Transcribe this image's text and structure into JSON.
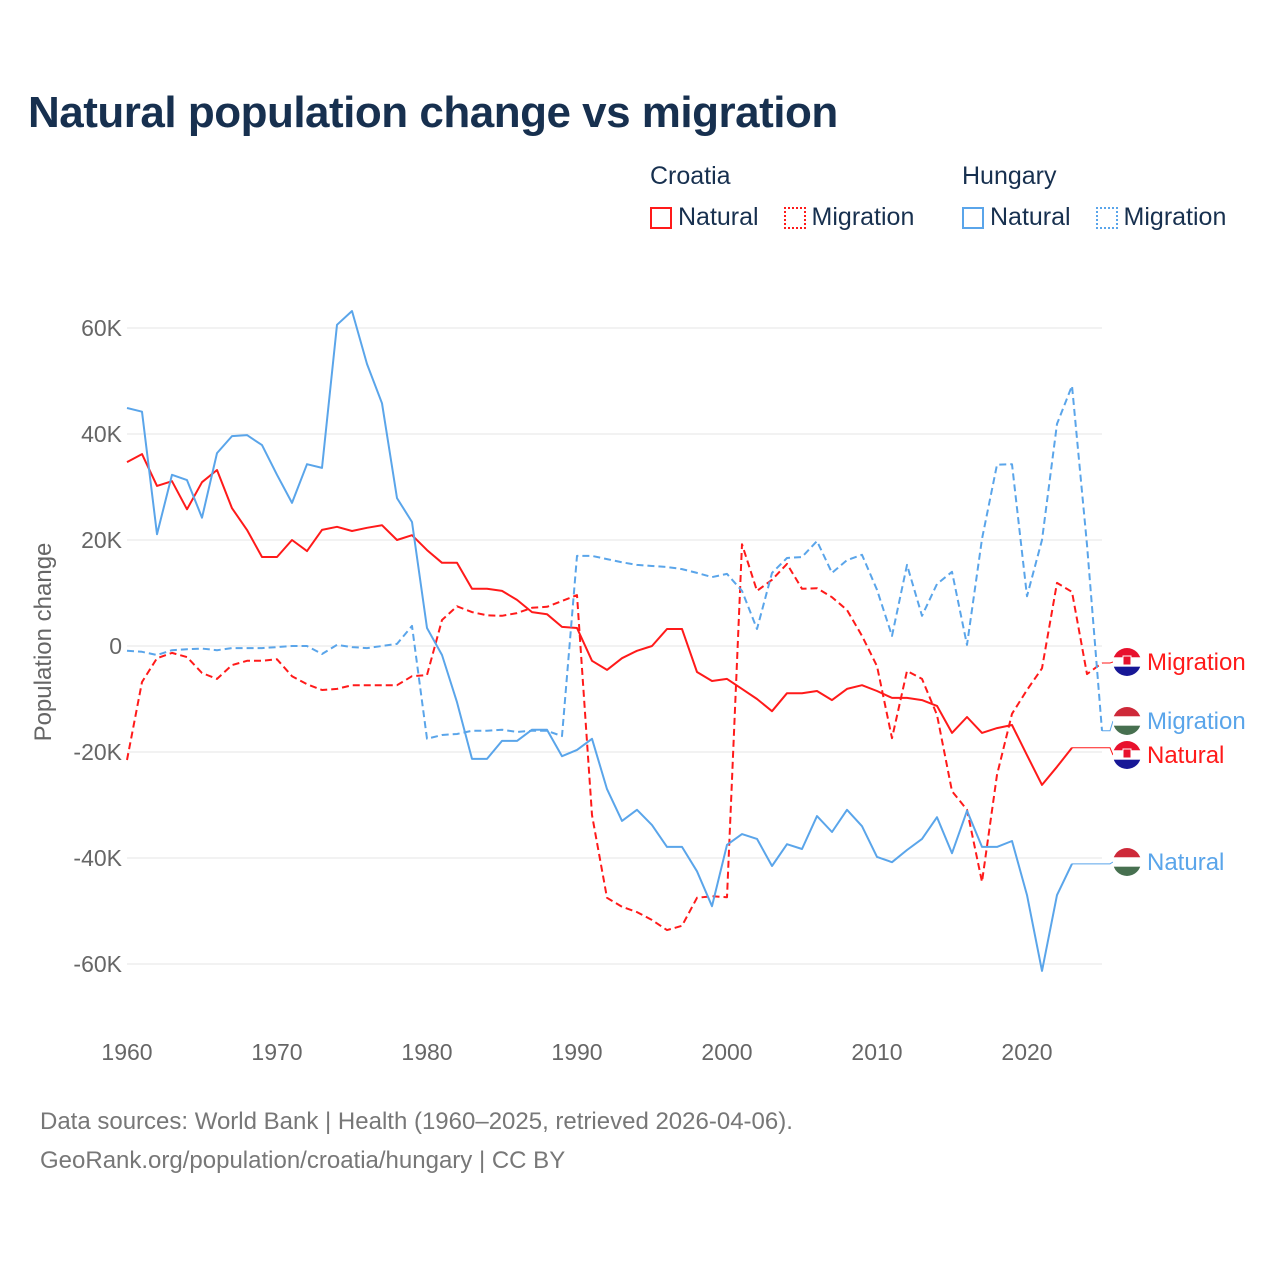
{
  "chart_data": {
    "type": "line",
    "title": "Natural population change vs migration",
    "xlabel": "",
    "ylabel": "Population change",
    "xlim": [
      1960,
      2025
    ],
    "ylim": [
      -70000,
      65000
    ],
    "x_ticks": [
      1960,
      1970,
      1980,
      1990,
      2000,
      2010,
      2020
    ],
    "x_tick_labels": [
      "1960",
      "1970",
      "1980",
      "1990",
      "2000",
      "2010",
      "2020"
    ],
    "y_ticks": [
      60000,
      40000,
      20000,
      0,
      -20000,
      -40000,
      -60000
    ],
    "y_tick_labels": [
      "60K",
      "40K",
      "20K",
      "0",
      "-20K",
      "-40K",
      "-60K"
    ],
    "grid": true,
    "legend_placement": "top-right",
    "legend_groups": [
      {
        "name": "Croatia",
        "items": [
          {
            "label": "Natural",
            "style": "solid",
            "color": "#ff1a1a"
          },
          {
            "label": "Migration",
            "style": "dotted",
            "color": "#ff1a1a"
          }
        ]
      },
      {
        "name": "Hungary",
        "items": [
          {
            "label": "Natural",
            "style": "solid",
            "color": "#5aa5ea"
          },
          {
            "label": "Migration",
            "style": "dotted",
            "color": "#5aa5ea"
          }
        ]
      }
    ],
    "series": [
      {
        "name": "Croatia Natural",
        "end_label": "Natural",
        "country": "croatia",
        "dashed": false,
        "color": "#ff1a1a",
        "start": 1960,
        "values": [
          34700,
          36200,
          30200,
          31100,
          25800,
          30900,
          33200,
          26000,
          21900,
          16800,
          16800,
          20000,
          17900,
          21900,
          22500,
          21700,
          22300,
          22800,
          20000,
          20900,
          18100,
          15700,
          15700,
          10800,
          10800,
          10400,
          8700,
          6400,
          6000,
          3600,
          3400,
          -2800,
          -4500,
          -2300,
          -900,
          0,
          3200,
          3200,
          -4900,
          -6600,
          -6200,
          -8100,
          -10000,
          -12300,
          -8900,
          -8900,
          -8500,
          -10200,
          -8100,
          -7400,
          -8500,
          -9800,
          -9800,
          -10200,
          -11300,
          -16400,
          -13400,
          -16400,
          -15500,
          -14900,
          -20600,
          -26200,
          -22800,
          -19200
        ]
      },
      {
        "name": "Croatia Migration",
        "end_label": "Migration",
        "country": "croatia",
        "dashed": true,
        "color": "#ff1a1a",
        "start": 1960,
        "values": [
          -21500,
          -6800,
          -2300,
          -1300,
          -2100,
          -5100,
          -6200,
          -3600,
          -2800,
          -2800,
          -2500,
          -5700,
          -7200,
          -8300,
          -8100,
          -7400,
          -7400,
          -7400,
          -7400,
          -5700,
          -5500,
          4900,
          7500,
          6400,
          5800,
          5700,
          6200,
          7200,
          7400,
          8500,
          9600,
          -31900,
          -47500,
          -49200,
          -50200,
          -51700,
          -53600,
          -52800,
          -47500,
          -47200,
          -47400,
          19200,
          10400,
          12500,
          15500,
          10800,
          10900,
          9200,
          6800,
          1900,
          -3800,
          -17400,
          -4700,
          -6200,
          -13000,
          -27400,
          -30900,
          -44500,
          -24300,
          -12800,
          -8300,
          -4200,
          11900,
          10200,
          -5300,
          -3200
        ]
      },
      {
        "name": "Hungary Natural",
        "end_label": "Natural",
        "country": "hungary",
        "dashed": false,
        "color": "#5aa5ea",
        "start": 1960,
        "values": [
          44900,
          44200,
          21100,
          32300,
          31300,
          24200,
          36400,
          39600,
          39800,
          37900,
          32300,
          27000,
          34300,
          33600,
          60600,
          63200,
          53200,
          45800,
          27900,
          23400,
          3400,
          -1700,
          -10600,
          -21300,
          -21300,
          -17900,
          -17900,
          -15800,
          -15800,
          -20800,
          -19600,
          -17500,
          -27000,
          -33000,
          -30900,
          -33800,
          -37900,
          -37900,
          -42500,
          -49100,
          -37500,
          -35500,
          -36400,
          -41500,
          -37400,
          -38300,
          -32100,
          -35100,
          -30900,
          -34000,
          -39800,
          -40800,
          -38500,
          -36400,
          -32300,
          -39100,
          -31100,
          -37900,
          -37900,
          -36800,
          -47000,
          -61300,
          -47000,
          -41100
        ]
      },
      {
        "name": "Hungary Migration",
        "end_label": "Migration",
        "country": "hungary",
        "dashed": true,
        "color": "#5aa5ea",
        "start": 1960,
        "values": [
          -900,
          -1100,
          -1700,
          -800,
          -600,
          -500,
          -800,
          -400,
          -400,
          -400,
          -200,
          0,
          0,
          -1500,
          200,
          -200,
          -400,
          0,
          400,
          3800,
          -17500,
          -16800,
          -16600,
          -16000,
          -16000,
          -15800,
          -16200,
          -16000,
          -16000,
          -17000,
          17000,
          17000,
          16400,
          15800,
          15300,
          15100,
          14900,
          14500,
          13800,
          13000,
          13600,
          10400,
          3200,
          13800,
          16600,
          16800,
          19800,
          13800,
          16200,
          17200,
          10600,
          1900,
          15300,
          5700,
          11700,
          14000,
          200,
          20200,
          34200,
          34300,
          9400,
          20000,
          41900,
          49100,
          19100,
          -16000
        ]
      }
    ]
  },
  "footer": {
    "line1": "Data sources: World Bank | Health (1960–2025, retrieved 2026-04-06).",
    "line2": "GeoRank.org/population/croatia/hungary | CC BY"
  }
}
